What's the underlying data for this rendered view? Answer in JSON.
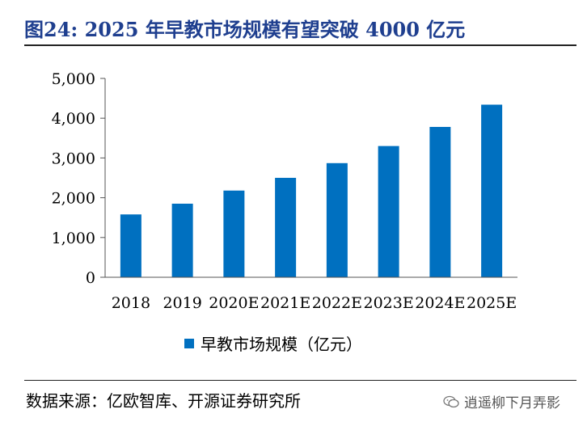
{
  "header": {
    "title": "图24:  2025 年早教市场规模有望突破 4000 亿元"
  },
  "footer": {
    "source": "数据来源：亿欧智库、开源证券研究所",
    "watermark": "逍遥柳下月弄影",
    "watermark_icon": "wechat-icon"
  },
  "colors": {
    "bar": "#0070c0",
    "title": "#1f3f8f"
  },
  "chart_data": {
    "type": "bar",
    "title": "",
    "xlabel": "",
    "ylabel": "",
    "categories": [
      "2018",
      "2019",
      "2020E",
      "2021E",
      "2022E",
      "2023E",
      "2024E",
      "2025E"
    ],
    "series": [
      {
        "name": "早教市场规模（亿元）",
        "values": [
          1580,
          1850,
          2180,
          2500,
          2870,
          3300,
          3780,
          4340
        ]
      }
    ],
    "ylim": [
      0,
      5000
    ],
    "yticks": [
      0,
      1000,
      2000,
      3000,
      4000,
      5000
    ],
    "ytick_labels": [
      "0",
      "1,000",
      "2,000",
      "3,000",
      "4,000",
      "5,000"
    ],
    "grid": false,
    "legend": "bottom-center"
  }
}
